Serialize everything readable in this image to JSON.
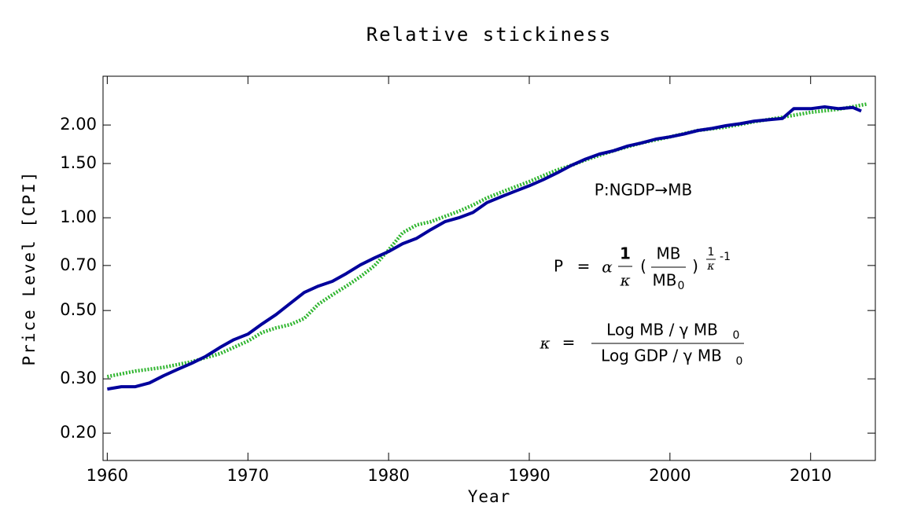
{
  "chart_data": {
    "type": "line",
    "title": "Relative stickiness",
    "xlabel": "Year",
    "ylabel": "Price Level [CPI]",
    "log_y": true,
    "xlim": [
      1959.7,
      2014.6
    ],
    "xticks": [
      1960,
      1970,
      1980,
      1990,
      2000,
      2010
    ],
    "ylim": [
      0.163,
      2.88
    ],
    "yticks": [
      {
        "value": 0.2,
        "label": "0.20"
      },
      {
        "value": 0.3,
        "label": "0.30"
      },
      {
        "value": 0.5,
        "label": "0.50"
      },
      {
        "value": 0.7,
        "label": "0.70"
      },
      {
        "value": 1,
        "label": "1.00"
      },
      {
        "value": 1.5,
        "label": "1.50"
      },
      {
        "value": 2,
        "label": "2.00"
      }
    ],
    "series": [
      {
        "color": "#00009c",
        "style": "solid",
        "x": [
          1960,
          1961,
          1962,
          1963,
          1964,
          1965,
          1966,
          1967,
          1968,
          1969,
          1970,
          1971,
          1972,
          1973,
          1974,
          1975,
          1976,
          1977,
          1978,
          1979,
          1980,
          1981,
          1982,
          1983,
          1984,
          1985,
          1986,
          1987,
          1988,
          1989,
          1990,
          1991,
          1992,
          1993,
          1994,
          1995,
          1996,
          1997,
          1998,
          1999,
          2000,
          2001,
          2002,
          2003,
          2004,
          2005,
          2006,
          2007,
          2008,
          2008.8,
          2010,
          2011,
          2012,
          2013,
          2013.6
        ],
        "values": [
          0.278,
          0.283,
          0.283,
          0.291,
          0.307,
          0.322,
          0.337,
          0.355,
          0.379,
          0.402,
          0.419,
          0.452,
          0.485,
          0.527,
          0.572,
          0.6,
          0.622,
          0.659,
          0.703,
          0.741,
          0.777,
          0.824,
          0.858,
          0.915,
          0.971,
          1.0,
          1.04,
          1.12,
          1.17,
          1.22,
          1.27,
          1.33,
          1.4,
          1.48,
          1.55,
          1.61,
          1.65,
          1.71,
          1.75,
          1.8,
          1.83,
          1.87,
          1.92,
          1.95,
          1.99,
          2.02,
          2.06,
          2.08,
          2.1,
          2.26,
          2.26,
          2.29,
          2.26,
          2.28,
          2.22
        ]
      },
      {
        "color": "#2fb52f",
        "style": "dotted",
        "x": [
          1960,
          1962,
          1964,
          1966,
          1968,
          1970,
          1971,
          1972,
          1973,
          1974,
          1975,
          1976,
          1977,
          1978,
          1979,
          1980,
          1981,
          1982,
          1983,
          1984,
          1985,
          1986,
          1987,
          1988,
          1989,
          1990,
          1991,
          1992,
          1993,
          1994,
          1996,
          1998,
          2000,
          2002,
          2004,
          2006,
          2008,
          2010,
          2012,
          2014
        ],
        "values": [
          0.305,
          0.318,
          0.327,
          0.341,
          0.362,
          0.398,
          0.424,
          0.439,
          0.45,
          0.471,
          0.524,
          0.562,
          0.6,
          0.644,
          0.699,
          0.786,
          0.894,
          0.948,
          0.971,
          1.01,
          1.05,
          1.1,
          1.16,
          1.21,
          1.26,
          1.31,
          1.37,
          1.43,
          1.48,
          1.54,
          1.65,
          1.75,
          1.83,
          1.92,
          1.97,
          2.05,
          2.12,
          2.2,
          2.25,
          2.34
        ]
      }
    ],
    "annotations": {
      "mapping": "P:NGDP→MB",
      "price_formula": [
        "P",
        "=",
        "α",
        "1",
        "κ",
        "(",
        "MB",
        "MB",
        "0",
        ")",
        "1",
        "κ",
        "-1"
      ],
      "kappa_formula": [
        "κ",
        "=",
        "Log MB / γ MB",
        "0",
        "Log GDP / γ MB",
        "0"
      ]
    }
  }
}
